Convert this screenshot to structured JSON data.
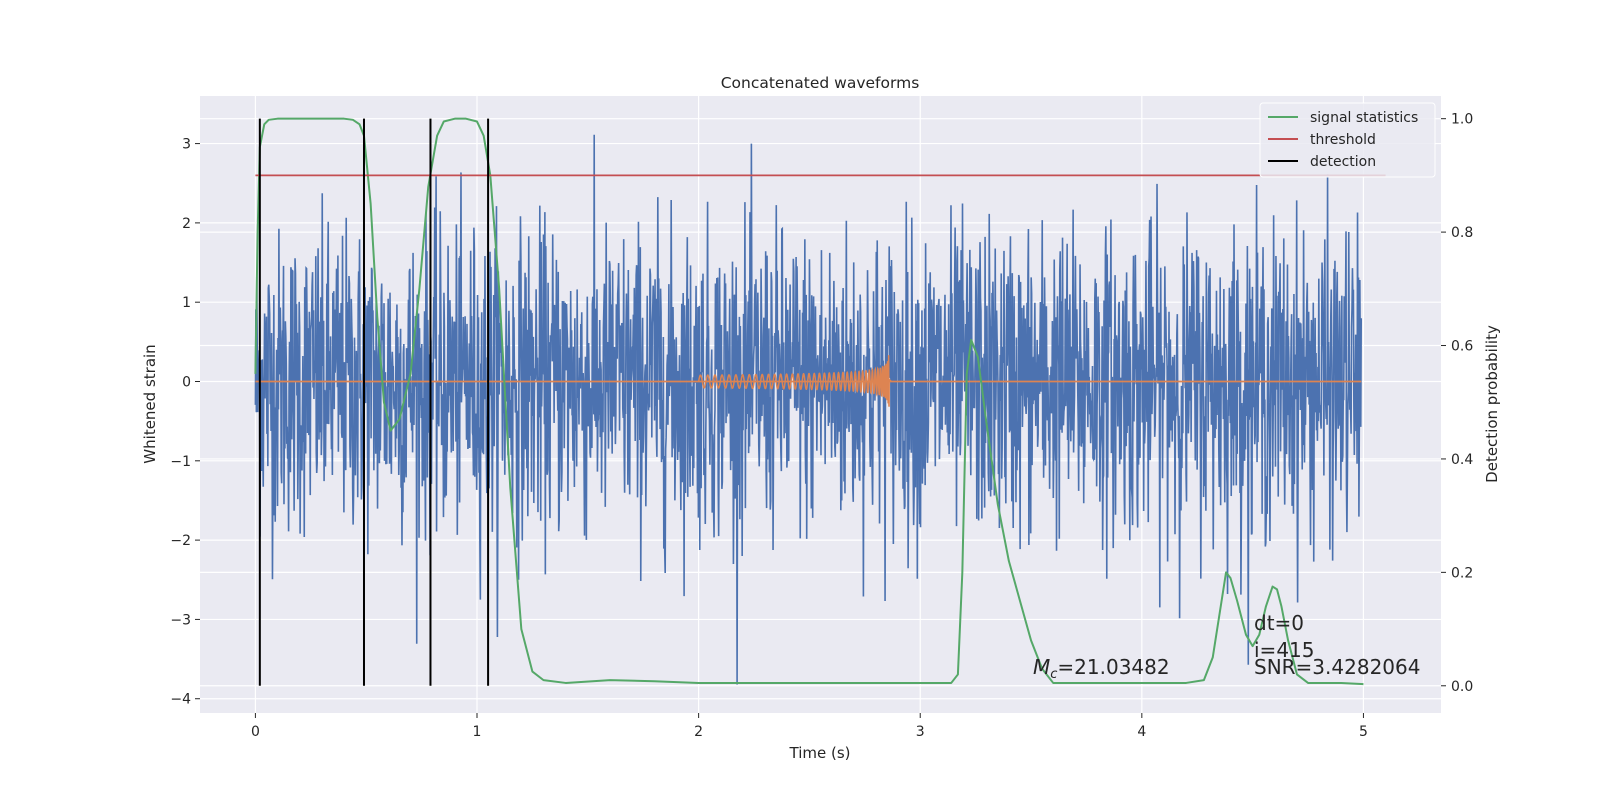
{
  "chart_data": {
    "type": "line",
    "title": "Concatenated waveforms",
    "xlabel": "Time (s)",
    "ylabel": "Whitened strain",
    "y2label": "Detection probability",
    "xlim": [
      -0.25,
      5.35
    ],
    "ylim": [
      -4.18,
      3.6
    ],
    "y2lim": [
      -0.048,
      1.04
    ],
    "x_ticks": [
      0,
      1,
      2,
      3,
      4,
      5
    ],
    "x_tick_labels": [
      "0",
      "1",
      "2",
      "3",
      "4",
      "5"
    ],
    "y_ticks": [
      -4,
      -3,
      -2,
      -1,
      0,
      1,
      2,
      3
    ],
    "y_tick_labels": [
      "−4",
      "−3",
      "−2",
      "−1",
      "0",
      "1",
      "2",
      "3"
    ],
    "y2_ticks": [
      0,
      0.2,
      0.4,
      0.6,
      0.8,
      1.0
    ],
    "y2_tick_labels": [
      "0.0",
      "0.2",
      "0.4",
      "0.6",
      "0.8",
      "1.0"
    ],
    "grid": true,
    "legend_position": "top-right",
    "colors": {
      "background": "#eaeaf2",
      "grid": "#ffffff",
      "strain": "#4c72b0",
      "template": "#dd8452",
      "signal_statistics": "#55a868",
      "threshold": "#c44e52",
      "detection": "#000000"
    },
    "series": [
      {
        "name": "signal statistics",
        "axis": "right",
        "x": [
          0,
          0.01,
          0.02,
          0.04,
          0.06,
          0.1,
          0.2,
          0.3,
          0.4,
          0.44,
          0.47,
          0.49,
          0.52,
          0.55,
          0.58,
          0.61,
          0.65,
          0.7,
          0.74,
          0.78,
          0.82,
          0.85,
          0.9,
          0.95,
          1.0,
          1.03,
          1.06,
          1.1,
          1.15,
          1.2,
          1.25,
          1.3,
          1.4,
          1.6,
          1.8,
          2.0,
          2.5,
          3.0,
          3.14,
          3.17,
          3.19,
          3.21,
          3.23,
          3.26,
          3.3,
          3.35,
          3.4,
          3.45,
          3.5,
          3.55,
          3.6,
          4.0,
          4.2,
          4.28,
          4.32,
          4.36,
          4.38,
          4.4,
          4.43,
          4.47,
          4.5,
          4.53,
          4.56,
          4.59,
          4.61,
          4.63,
          4.66,
          4.7,
          4.75,
          4.8,
          4.9,
          5.0
        ],
        "values": [
          0.55,
          0.8,
          0.95,
          0.99,
          0.998,
          1.0,
          1.0,
          1.0,
          1.0,
          0.998,
          0.99,
          0.97,
          0.85,
          0.65,
          0.5,
          0.45,
          0.47,
          0.55,
          0.7,
          0.88,
          0.97,
          0.995,
          1.0,
          1.0,
          0.995,
          0.97,
          0.9,
          0.7,
          0.35,
          0.1,
          0.025,
          0.01,
          0.005,
          0.01,
          0.008,
          0.005,
          0.005,
          0.005,
          0.005,
          0.02,
          0.2,
          0.55,
          0.61,
          0.58,
          0.46,
          0.32,
          0.22,
          0.15,
          0.08,
          0.03,
          0.005,
          0.005,
          0.005,
          0.01,
          0.05,
          0.15,
          0.2,
          0.19,
          0.15,
          0.09,
          0.07,
          0.09,
          0.14,
          0.175,
          0.17,
          0.14,
          0.08,
          0.02,
          0.005,
          0.005,
          0.005,
          0.003
        ]
      },
      {
        "name": "threshold",
        "axis": "right",
        "x": [
          0,
          5.1
        ],
        "values": [
          0.9,
          0.9
        ]
      },
      {
        "name": "detection",
        "axis": "right",
        "x": [
          0.02,
          0.49,
          0.79,
          1.05
        ],
        "values": [
          [
            0,
            1
          ],
          [
            0,
            1
          ],
          [
            0,
            1
          ],
          [
            0,
            1
          ]
        ]
      },
      {
        "axis": "left",
        "x_start": 0,
        "x_end": 4.99,
        "amplitude_sd": 0.95,
        "max": 3.35,
        "min": -3.9
      },
      {
        "axis": "left",
        "x_start": 2.0,
        "x_end": 2.86,
        "start_amplitude": 0.08,
        "peak_amplitude": 0.62
      }
    ],
    "annotations": {
      "chirp_mass_prefix": "M",
      "chirp_mass_sub": "c",
      "chirp_mass_value": "=21.03482",
      "dt": "dt=0",
      "i": "i=415",
      "snr": "SNR=3.4282064"
    }
  }
}
